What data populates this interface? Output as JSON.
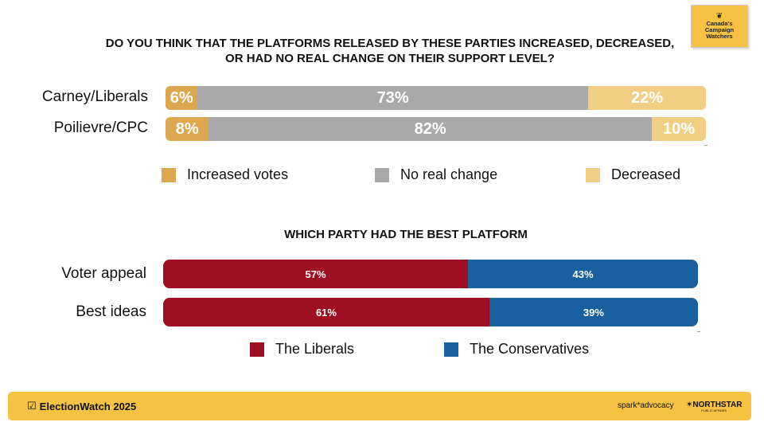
{
  "logo": {
    "text": "Canada's Campaign Watchers",
    "icon": "maple-leaf-icon"
  },
  "colors": {
    "increased": "#dca74e",
    "no_change": "#a9a9a9",
    "decreased": "#f0cf85",
    "liberals": "#9e0f23",
    "conservatives": "#19609e",
    "footer": "#f5c242"
  },
  "chart_data": [
    {
      "type": "bar",
      "orientation": "horizontal-stacked",
      "title": "DO YOU THINK THAT THE PLATFORMS RELEASED BY THESE PARTIES INCREASED, DECREASED, OR HAD NO REAL CHANGE ON THEIR SUPPORT LEVEL?",
      "categories": [
        "Carney/Liberals",
        "Poilievre/CPC"
      ],
      "series": [
        {
          "name": "Increased votes",
          "values": [
            6,
            8
          ],
          "labels": [
            "6%",
            "8%"
          ]
        },
        {
          "name": "No real change",
          "values": [
            73,
            82
          ],
          "labels": [
            "73%",
            "82%"
          ]
        },
        {
          "name": "Decreased",
          "values": [
            22,
            10
          ],
          "labels": [
            "22%",
            "10%"
          ]
        }
      ],
      "legend_position": "bottom"
    },
    {
      "type": "bar",
      "orientation": "horizontal-stacked",
      "title": "WHICH PARTY HAD THE BEST PLATFORM",
      "categories": [
        "Voter appeal",
        "Best ideas"
      ],
      "series": [
        {
          "name": "The Liberals",
          "values": [
            57,
            61
          ],
          "labels": [
            "57%",
            "61%"
          ]
        },
        {
          "name": "The Conservatives",
          "values": [
            43,
            39
          ],
          "labels": [
            "43%",
            "39%"
          ]
        }
      ],
      "legend_position": "bottom"
    }
  ],
  "footer": {
    "brand": "ElectionWatch 2025",
    "partner1": "spark*advocacy",
    "partner2": "✶NORTHSTAR",
    "partner2_sub": "PUBLIC AFFAIRS"
  }
}
